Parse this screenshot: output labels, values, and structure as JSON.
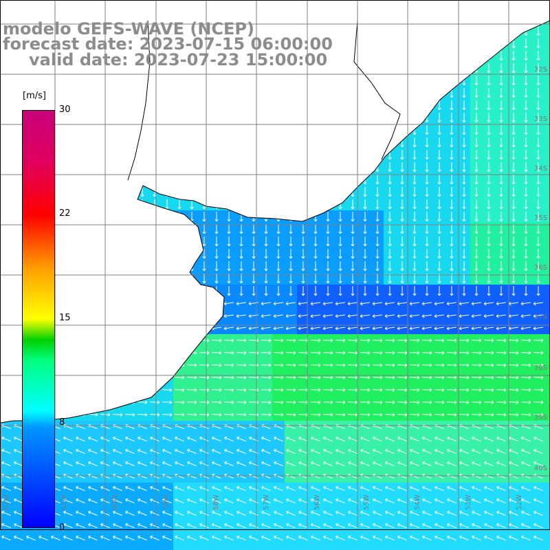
{
  "title": {
    "line1": "modelo GEFS-WAVE (NCEP)",
    "line2": "forecast date: 2023-07-15 06:00:00",
    "line3": "valid date: 2023-07-23 15:00:00"
  },
  "colorbar": {
    "unit": "[m/s]",
    "min": 0,
    "max": 30,
    "ticks": [
      "30",
      "22",
      "15",
      "8",
      "0"
    ]
  },
  "grid": {
    "lat_labels": [
      "32S",
      "33S",
      "34S",
      "35S",
      "36S",
      "37S",
      "38S",
      "39S",
      "40S"
    ],
    "lon_labels": [
      "62W",
      "61W",
      "60W",
      "59W",
      "58W",
      "57W",
      "56W",
      "55W",
      "54W",
      "53W",
      "52W"
    ]
  },
  "colors": {
    "land": "#ffffff",
    "coast": "#000000",
    "grid": "#7f7f7f",
    "arrows": "#ffffff",
    "title": "#8c8c8c"
  }
}
